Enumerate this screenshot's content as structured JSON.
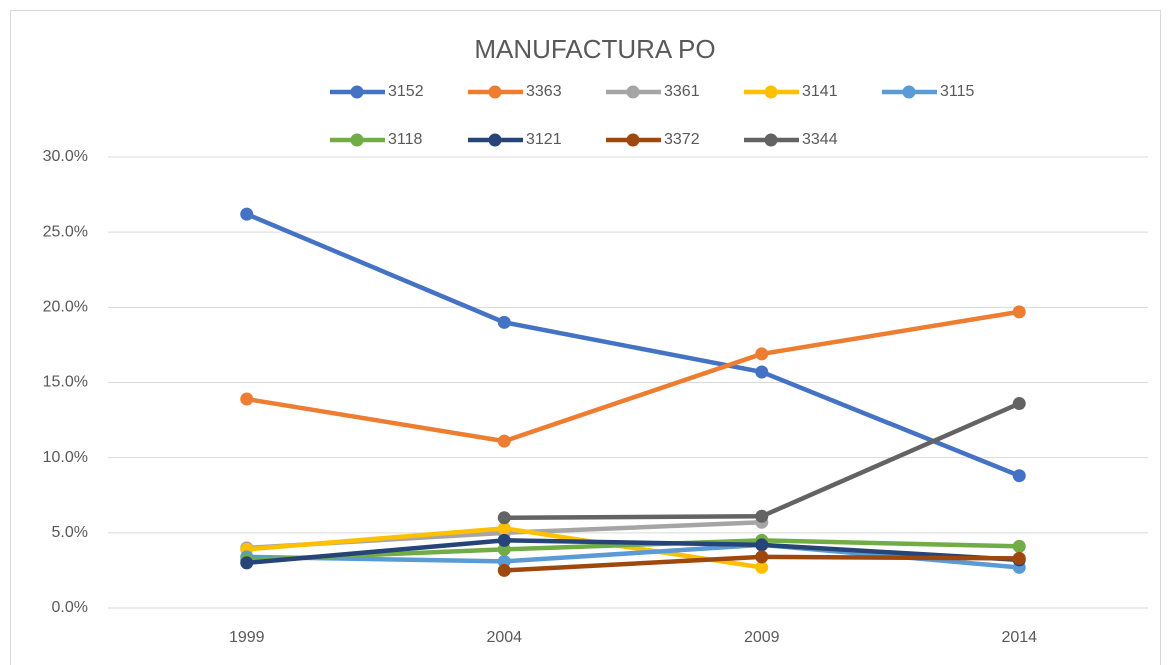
{
  "chart_data": {
    "type": "line",
    "title": "MANUFACTURA PO",
    "categories": [
      "1999",
      "2004",
      "2009",
      "2014"
    ],
    "ylim": [
      0,
      30
    ],
    "yticks": [
      {
        "value": 0,
        "label": "0.0%"
      },
      {
        "value": 5,
        "label": "5.0%"
      },
      {
        "value": 10,
        "label": "10.0%"
      },
      {
        "value": 15,
        "label": "15.0%"
      },
      {
        "value": 20,
        "label": "20.0%"
      },
      {
        "value": 25,
        "label": "25.0%"
      },
      {
        "value": 30,
        "label": "30.0%"
      }
    ],
    "grid": true,
    "legend": "top",
    "series": [
      {
        "name": "3152",
        "color": "#4472c4",
        "values": [
          26.2,
          19.0,
          15.7,
          8.8
        ]
      },
      {
        "name": "3363",
        "color": "#ed7d31",
        "values": [
          13.9,
          11.1,
          16.9,
          19.7
        ]
      },
      {
        "name": "3361",
        "color": "#a5a5a5",
        "values": [
          4.0,
          5.0,
          5.7,
          null
        ]
      },
      {
        "name": "3141",
        "color": "#ffc000",
        "values": [
          3.9,
          5.3,
          2.7,
          null
        ]
      },
      {
        "name": "3115",
        "color": "#5b9bd5",
        "values": [
          3.4,
          3.1,
          4.2,
          2.7
        ]
      },
      {
        "name": "3118",
        "color": "#70ad47",
        "values": [
          3.2,
          3.9,
          4.5,
          4.1
        ]
      },
      {
        "name": "3121",
        "color": "#264478",
        "values": [
          3.0,
          4.5,
          4.2,
          3.2
        ]
      },
      {
        "name": "3372",
        "color": "#9e480e",
        "values": [
          null,
          2.5,
          3.4,
          3.3
        ]
      },
      {
        "name": "3344",
        "color": "#636363",
        "values": [
          null,
          6.0,
          6.1,
          13.6
        ]
      }
    ]
  }
}
